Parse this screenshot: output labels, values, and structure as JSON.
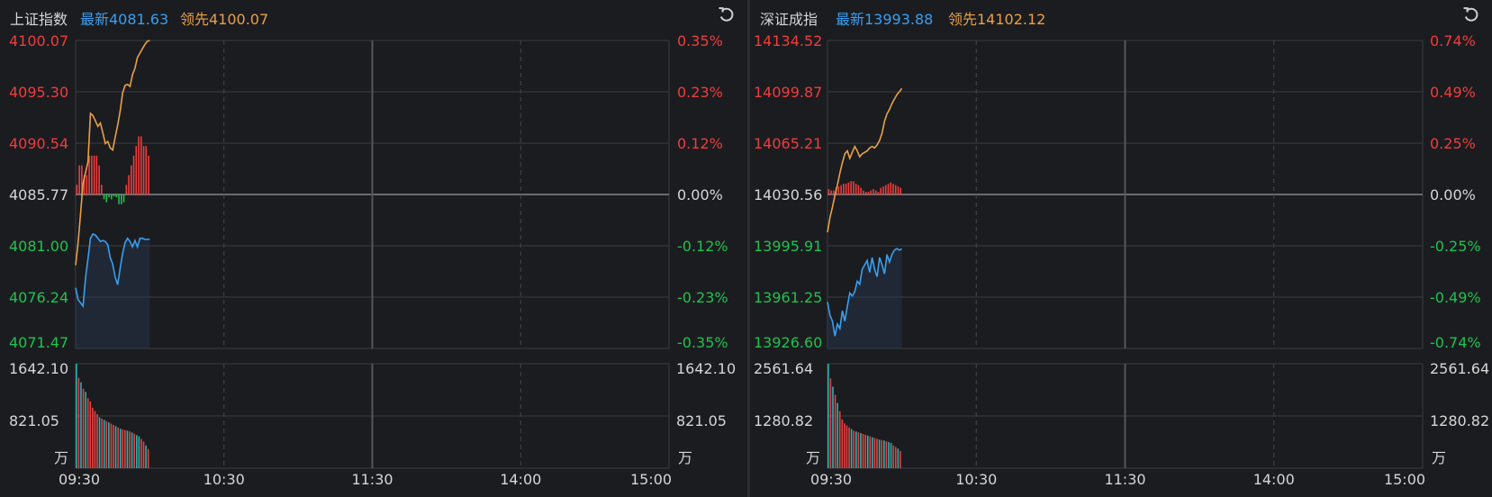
{
  "panels": [
    {
      "name": "上证指数",
      "latest_label": "最新4081.63",
      "leader_label": "领先4100.07",
      "price_ticks": [
        "4100.07",
        "4095.30",
        "4090.54",
        "4085.77",
        "4081.00",
        "4076.24",
        "4071.47"
      ],
      "pct_ticks": [
        "0.35%",
        "0.23%",
        "0.12%",
        "0.00%",
        "-0.12%",
        "-0.23%",
        "-0.35%"
      ],
      "vol_ticks": [
        "1642.10",
        "821.05"
      ],
      "vol_unit": "万",
      "time_ticks": [
        "09:30",
        "10:30",
        "11:30",
        "14:00",
        "15:00"
      ]
    },
    {
      "name": "深证成指",
      "latest_label": "最新13993.88",
      "leader_label": "领先14102.12",
      "price_ticks": [
        "14134.52",
        "14099.87",
        "14065.21",
        "14030.56",
        "13995.91",
        "13961.25",
        "13926.60"
      ],
      "pct_ticks": [
        "0.74%",
        "0.49%",
        "0.25%",
        "0.00%",
        "-0.25%",
        "-0.49%",
        "-0.74%"
      ],
      "vol_ticks": [
        "2561.64",
        "1280.82"
      ],
      "vol_unit": "万",
      "time_ticks": [
        "09:30",
        "10:30",
        "11:30",
        "14:00",
        "15:00"
      ]
    }
  ],
  "colors": {
    "up": "#f03c3c",
    "down": "#1fc24f",
    "flat": "#d6d6d6",
    "latest": "#3a9ff0",
    "leader": "#e8a048",
    "vol_up": "#e8413f",
    "vol_down": "#2bb3b0",
    "grid": "#3a3b40"
  },
  "chart_data": [
    {
      "type": "line",
      "title": "上证指数",
      "x_range": [
        "09:30",
        "15:00"
      ],
      "ylim": [
        4071.47,
        4100.07
      ],
      "prev_close": 4085.77,
      "series": [
        {
          "name": "最新",
          "x_minutes": [
            0,
            1,
            2,
            3,
            4,
            5,
            6,
            7,
            8,
            9,
            10,
            11,
            12,
            13,
            14,
            15,
            16,
            17,
            18,
            19,
            20,
            21,
            22,
            23,
            24,
            25,
            26,
            27,
            28,
            29,
            30
          ],
          "values": [
            4077.1,
            4076.0,
            4075.7,
            4075.4,
            4078.0,
            4079.8,
            4081.7,
            4082.1,
            4082.0,
            4081.7,
            4081.4,
            4081.5,
            4081.4,
            4081.1,
            4079.9,
            4079.3,
            4078.1,
            4077.4,
            4078.9,
            4080.3,
            4081.3,
            4081.7,
            4081.4,
            4080.9,
            4081.5,
            4080.9,
            4081.7,
            4081.7,
            4081.6,
            4081.6,
            4081.63
          ]
        },
        {
          "name": "领先",
          "x_minutes": [
            0,
            1,
            2,
            3,
            4,
            5,
            6,
            7,
            8,
            9,
            10,
            11,
            12,
            13,
            14,
            15,
            16,
            17,
            18,
            19,
            20,
            21,
            22,
            23,
            24,
            25,
            26,
            27,
            28,
            29,
            30
          ],
          "values": [
            4079.2,
            4081.3,
            4084.0,
            4086.8,
            4087.8,
            4088.8,
            4093.3,
            4093.1,
            4092.6,
            4092.1,
            4092.4,
            4091.5,
            4090.5,
            4090.7,
            4090.1,
            4089.9,
            4091.1,
            4092.2,
            4093.5,
            4095.2,
            4095.9,
            4096.0,
            4095.8,
            4096.9,
            4097.5,
            4098.5,
            4098.9,
            4099.3,
            4099.7,
            4100.0,
            4100.07
          ]
        }
      ],
      "diff_bars": {
        "values": [
          1.0,
          3.0,
          3.0,
          2.0,
          2.0,
          4.0,
          4.0,
          4.0,
          4.0,
          3.0,
          1.0,
          -0.5,
          -0.8,
          -0.3,
          -0.5,
          -0.2,
          -0.3,
          -1.0,
          -1.0,
          -0.8,
          1.0,
          2.0,
          3.0,
          4.0,
          5.0,
          6.0,
          6.0,
          5.0,
          5.0,
          4.0
        ]
      },
      "volume": {
        "ylim": [
          0,
          1642.1
        ],
        "unit": "万",
        "values": [
          1642.1,
          1420,
          1350,
          1250,
          1200,
          1100,
          1050,
          950,
          900,
          850,
          800,
          780,
          760,
          740,
          720,
          700,
          680,
          660,
          640,
          620,
          610,
          600,
          590,
          580,
          560,
          540,
          520,
          500,
          460,
          420,
          360,
          300
        ],
        "colors": [
          "down",
          "up",
          "down",
          "up",
          "down",
          "up",
          "up",
          "up",
          "up",
          "up",
          "down",
          "up",
          "down",
          "up",
          "down",
          "up",
          "up",
          "down",
          "up",
          "down",
          "up",
          "up",
          "down",
          "up",
          "down",
          "up",
          "down",
          "down",
          "up",
          "up",
          "down",
          "up"
        ]
      }
    },
    {
      "type": "line",
      "title": "深证成指",
      "x_range": [
        "09:30",
        "15:00"
      ],
      "ylim": [
        13926.6,
        14134.52
      ],
      "prev_close": 14030.56,
      "series": [
        {
          "name": "最新",
          "x_minutes": [
            0,
            1,
            2,
            3,
            4,
            5,
            6,
            7,
            8,
            9,
            10,
            11,
            12,
            13,
            14,
            15,
            16,
            17,
            18,
            19,
            20,
            21,
            22,
            23,
            24,
            25,
            26,
            27,
            28,
            29,
            30
          ],
          "values": [
            13958.0,
            13949.0,
            13945.0,
            13935.0,
            13943.0,
            13940.0,
            13952.0,
            13945.0,
            13955.0,
            13964.0,
            13962.0,
            13965.0,
            13972.0,
            13970.0,
            13980.0,
            13983.0,
            13986.0,
            13978.0,
            13988.0,
            13980.0,
            13975.0,
            13988.0,
            13983.0,
            13977.0,
            13990.0,
            13985.0,
            13990.0,
            13993.0,
            13994.0,
            13993.0,
            13993.88
          ]
        },
        {
          "name": "领先",
          "x_minutes": [
            0,
            1,
            2,
            3,
            4,
            5,
            6,
            7,
            8,
            9,
            10,
            11,
            12,
            13,
            14,
            15,
            16,
            17,
            18,
            19,
            20,
            21,
            22,
            23,
            24,
            25,
            26,
            27,
            28,
            29,
            30
          ],
          "values": [
            14005.0,
            14015.0,
            14022.0,
            14030.0,
            14037.0,
            14045.0,
            14052.0,
            14058.0,
            14060.0,
            14055.0,
            14059.0,
            14063.0,
            14060.0,
            14056.0,
            14058.0,
            14059.0,
            14060.0,
            14062.0,
            14063.0,
            14062.0,
            14064.0,
            14067.0,
            14072.0,
            14080.0,
            14085.0,
            14088.0,
            14092.0,
            14095.0,
            14098.0,
            14100.0,
            14102.12
          ]
        }
      ],
      "diff_bars": {
        "values": [
          4.0,
          3.0,
          3.0,
          5.0,
          6.0,
          7.0,
          8.0,
          8.0,
          9.0,
          10.0,
          10.0,
          8.0,
          7.0,
          5.0,
          3.0,
          2.0,
          2.0,
          3.0,
          4.0,
          3.0,
          2.0,
          5.0,
          6.0,
          7.0,
          8.0,
          9.0,
          8.0,
          7.0,
          6.0,
          5.0
        ]
      },
      "volume": {
        "ylim": [
          0,
          2561.64
        ],
        "unit": "万",
        "values": [
          2561.64,
          2200,
          2000,
          1800,
          1600,
          1400,
          1200,
          1100,
          1050,
          1000,
          960,
          920,
          900,
          880,
          860,
          840,
          820,
          800,
          780,
          760,
          740,
          720,
          700,
          690,
          680,
          660,
          640,
          620,
          560,
          520,
          480,
          420
        ],
        "colors": [
          "down",
          "up",
          "down",
          "up",
          "down",
          "up",
          "up",
          "up",
          "up",
          "up",
          "down",
          "up",
          "down",
          "up",
          "down",
          "up",
          "up",
          "down",
          "up",
          "down",
          "up",
          "up",
          "down",
          "up",
          "down",
          "up",
          "down",
          "down",
          "up",
          "up",
          "down",
          "up"
        ]
      }
    }
  ]
}
